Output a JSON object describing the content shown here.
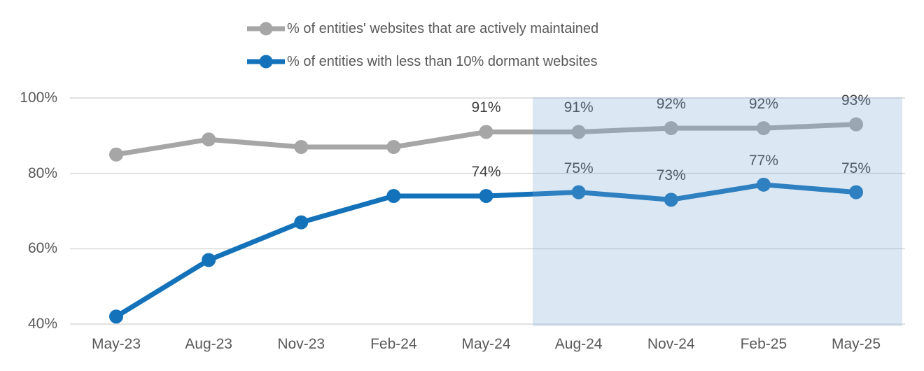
{
  "chart_data": {
    "type": "line",
    "categories": [
      "May-23",
      "Aug-23",
      "Nov-23",
      "Feb-24",
      "May-24",
      "Aug-24",
      "Nov-24",
      "Feb-25",
      "May-25"
    ],
    "series": [
      {
        "name": "% of entities' websites that are actively maintained",
        "color": "#A6A6A6",
        "values": [
          85,
          89,
          87,
          87,
          91,
          91,
          92,
          92,
          93
        ],
        "data_labels": [
          null,
          null,
          null,
          null,
          "91%",
          "91%",
          "92%",
          "92%",
          "93%"
        ]
      },
      {
        "name": "% of entities with less than 10% dormant websites",
        "color": "#1372B9",
        "values": [
          42,
          57,
          67,
          74,
          74,
          75,
          73,
          77,
          75
        ],
        "data_labels": [
          null,
          null,
          null,
          null,
          "74%",
          "75%",
          "73%",
          "77%",
          "75%"
        ]
      }
    ],
    "y_axis": {
      "tick_labels": [
        "100%",
        "80%",
        "60%",
        "40%"
      ],
      "tick_values": [
        100,
        80,
        60,
        40
      ],
      "min": 40,
      "max": 100
    },
    "xlabel": "",
    "ylabel": "",
    "title": "",
    "grid": "horizontal",
    "gridline_color": "#D9D9D9",
    "legend_position": "top-center",
    "shaded_region": {
      "start_category": "Aug-24",
      "end_category": "May-25",
      "starts_half_step_before_start_category": true,
      "color": "#7AA6D2",
      "opacity": 0.27
    }
  },
  "text_colors": {
    "axis": "#595959",
    "data_label": "#404040",
    "legend": "#595959"
  }
}
